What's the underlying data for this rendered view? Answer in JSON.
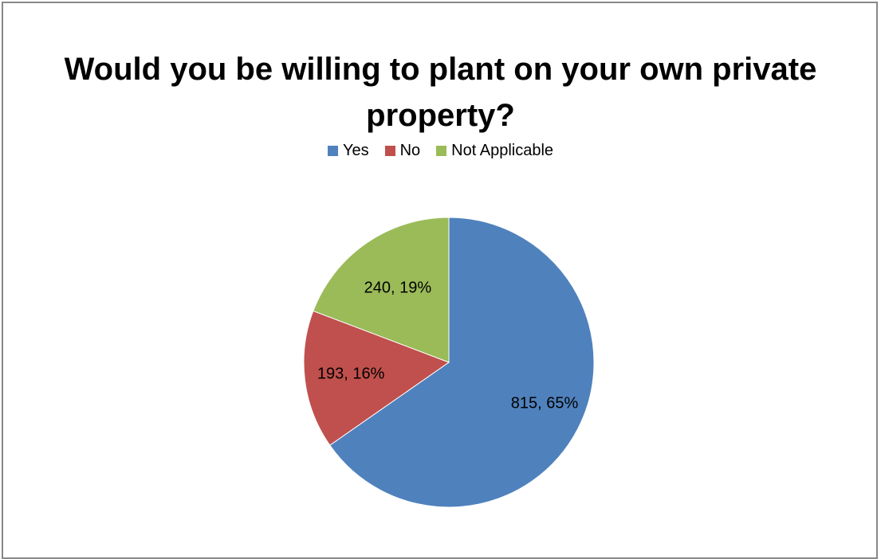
{
  "chart_data": {
    "type": "pie",
    "title": "Would you be willing to plant on your own private property?",
    "categories": [
      "Yes",
      "No",
      "Not Applicable"
    ],
    "values": [
      815,
      193,
      240
    ],
    "percentages": [
      "65%",
      "16%",
      "19%"
    ],
    "data_labels": [
      "815, 65%",
      "193, 16%",
      "240, 19%"
    ],
    "colors": [
      "#4F81BD",
      "#C0504D",
      "#9BBB59"
    ],
    "legend_position": "top",
    "start_angle": "12 o'clock",
    "direction": "clockwise"
  }
}
